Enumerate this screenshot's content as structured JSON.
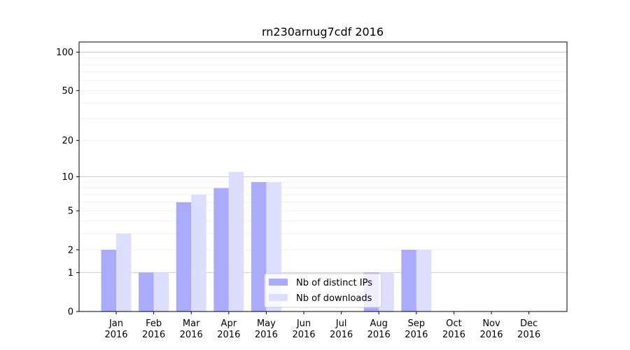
{
  "chart_data": {
    "type": "bar",
    "title": "rn230arnug7cdf 2016",
    "xlabel": "",
    "ylabel": "",
    "yscale": "log(1+y)",
    "ylim": [
      0,
      120
    ],
    "yticks": [
      0,
      1,
      2,
      5,
      10,
      20,
      50,
      100
    ],
    "grid": true,
    "legend_position": "lower-center",
    "categories": [
      [
        "Jan",
        "2016"
      ],
      [
        "Feb",
        "2016"
      ],
      [
        "Mar",
        "2016"
      ],
      [
        "Apr",
        "2016"
      ],
      [
        "May",
        "2016"
      ],
      [
        "Jun",
        "2016"
      ],
      [
        "Jul",
        "2016"
      ],
      [
        "Aug",
        "2016"
      ],
      [
        "Sep",
        "2016"
      ],
      [
        "Oct",
        "2016"
      ],
      [
        "Nov",
        "2016"
      ],
      [
        "Dec",
        "2016"
      ]
    ],
    "series": [
      {
        "name": "Nb of distinct IPs",
        "color": "#aaaaff",
        "values": [
          2,
          1,
          6,
          8,
          9,
          0,
          0,
          1,
          2,
          0,
          0,
          0
        ]
      },
      {
        "name": "Nb of downloads",
        "color": "#ddddff",
        "values": [
          3,
          1,
          7,
          11,
          9,
          0,
          0,
          1,
          2,
          0,
          0,
          0
        ]
      }
    ]
  }
}
